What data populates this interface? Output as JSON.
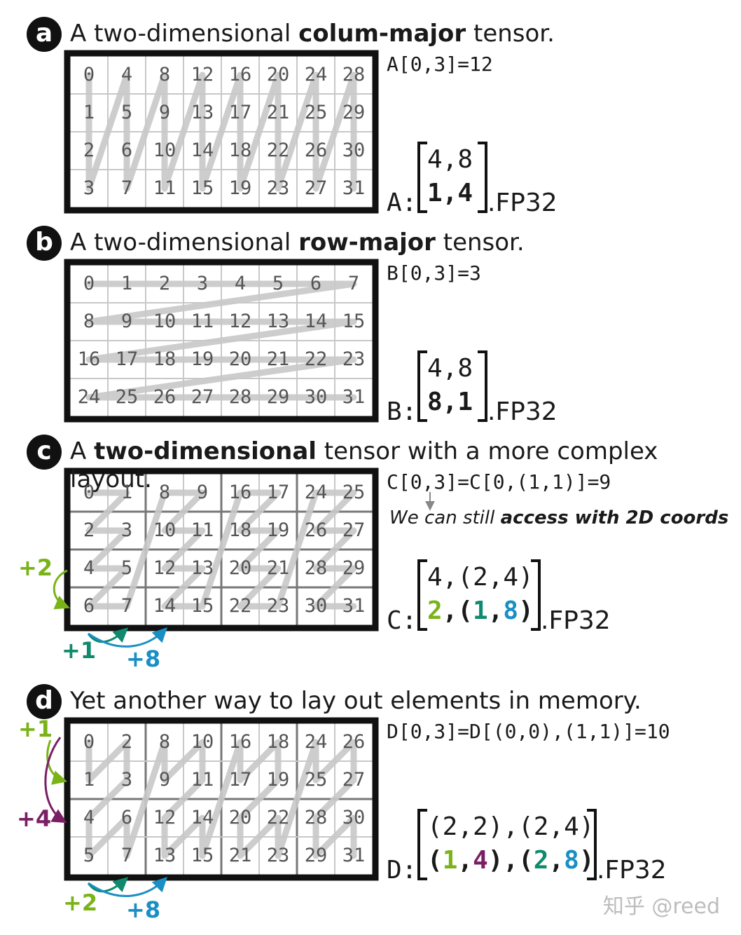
{
  "colors": {
    "green": "#7ab317",
    "teal": "#0f8a6e",
    "blue": "#1a8fc4",
    "purple": "#7a1f63",
    "zigzag": "#c8c8c8",
    "grid": "#c8c8c8"
  },
  "panels": [
    {
      "badge": "a",
      "title_pre": "A two-dimensional ",
      "title_bold": "colum-major",
      "title_post": " tensor.",
      "index_expr": "A[0,3]=12",
      "note_pre": "",
      "note_bold": "",
      "name": "A:",
      "shape_top": "4,8",
      "stride_parts": [
        {
          "text": "1,4",
          "color": ""
        }
      ],
      "dtype": ".FP32",
      "cells": [
        [
          0,
          4,
          8,
          12,
          16,
          20,
          24,
          28
        ],
        [
          1,
          5,
          9,
          13,
          17,
          21,
          25,
          29
        ],
        [
          2,
          6,
          10,
          14,
          18,
          22,
          26,
          30
        ],
        [
          3,
          7,
          11,
          15,
          19,
          23,
          27,
          31
        ]
      ]
    },
    {
      "badge": "b",
      "title_pre": "A two-dimensional ",
      "title_bold": "row-major",
      "title_post": " tensor.",
      "index_expr": "B[0,3]=3",
      "note_pre": "",
      "note_bold": "",
      "name": "B:",
      "shape_top": "4,8",
      "stride_parts": [
        {
          "text": "8,1",
          "color": ""
        }
      ],
      "dtype": ".FP32",
      "cells": [
        [
          0,
          1,
          2,
          3,
          4,
          5,
          6,
          7
        ],
        [
          8,
          9,
          10,
          11,
          12,
          13,
          14,
          15
        ],
        [
          16,
          17,
          18,
          19,
          20,
          21,
          22,
          23
        ],
        [
          24,
          25,
          26,
          27,
          28,
          29,
          30,
          31
        ]
      ]
    },
    {
      "badge": "c",
      "title_pre": "A ",
      "title_bold": "two-dimensional",
      "title_post": " tensor with a more complex layout.",
      "index_expr": "C[0,3]=C[0,(1,1)]=9",
      "note_pre": "We can still ",
      "note_bold": "access with 2D coords",
      "name": "C:",
      "shape_top": "4,(2,4)",
      "stride_parts": [
        {
          "text": "2",
          "color": "green"
        },
        {
          "text": ",(",
          "color": ""
        },
        {
          "text": "1",
          "color": "teal"
        },
        {
          "text": ",",
          "color": ""
        },
        {
          "text": "8",
          "color": "blue"
        },
        {
          "text": ")",
          "color": ""
        }
      ],
      "dtype": ".FP32",
      "cells": [
        [
          0,
          1,
          8,
          9,
          16,
          17,
          24,
          25
        ],
        [
          2,
          3,
          10,
          11,
          18,
          19,
          26,
          27
        ],
        [
          4,
          5,
          12,
          13,
          20,
          21,
          28,
          29
        ],
        [
          6,
          7,
          14,
          15,
          22,
          23,
          30,
          31
        ]
      ],
      "annotations": {
        "left": "+2",
        "bottom_a": "+1",
        "bottom_b": "+8"
      }
    },
    {
      "badge": "d",
      "title_pre": "Yet another way to lay out elements in memory.",
      "title_bold": "",
      "title_post": "",
      "index_expr": "D[0,3]=D[(0,0),(1,1)]=10",
      "note_pre": "",
      "note_bold": "",
      "name": "D:",
      "shape_top": "(2,2),(2,4)",
      "stride_parts": [
        {
          "text": "(",
          "color": ""
        },
        {
          "text": "1",
          "color": "green"
        },
        {
          "text": ",",
          "color": ""
        },
        {
          "text": "4",
          "color": "purple"
        },
        {
          "text": "),(",
          "color": ""
        },
        {
          "text": "2",
          "color": "teal"
        },
        {
          "text": ",",
          "color": ""
        },
        {
          "text": "8",
          "color": "blue"
        },
        {
          "text": ")",
          "color": ""
        }
      ],
      "dtype": ".FP32",
      "cells": [
        [
          0,
          2,
          8,
          10,
          16,
          18,
          24,
          26
        ],
        [
          1,
          3,
          9,
          11,
          17,
          19,
          25,
          27
        ],
        [
          4,
          6,
          12,
          14,
          20,
          22,
          28,
          30
        ],
        [
          5,
          7,
          13,
          15,
          21,
          23,
          29,
          31
        ]
      ],
      "annotations": {
        "left_a": "+1",
        "left_b": "+4",
        "bottom_a": "+2",
        "bottom_b": "+8"
      }
    }
  ],
  "watermark": "知乎 @reed"
}
